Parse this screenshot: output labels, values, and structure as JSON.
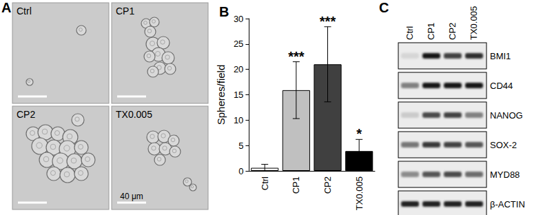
{
  "panel_a": {
    "letter": "A",
    "images": [
      {
        "label": "Ctrl"
      },
      {
        "label": "CP1"
      },
      {
        "label": "CP2"
      },
      {
        "label": "TX0.005",
        "scale_bar": "40 μm"
      }
    ]
  },
  "chart_data": {
    "type": "bar",
    "title": "B",
    "y_label": "Spheres/field",
    "categories": [
      "Ctrl",
      "CP1",
      "CP2",
      "TX0.005"
    ],
    "values": [
      0.6,
      15.9,
      21.0,
      3.9
    ],
    "errors": [
      0.7,
      5.6,
      7.4,
      2.3
    ],
    "annotations": [
      null,
      "***",
      "***",
      "*"
    ],
    "colors": [
      "#ffffff",
      "#c0c0c0",
      "#404040",
      "#000000"
    ],
    "ylim": [
      0,
      30
    ],
    "yticks": [
      0,
      5,
      10,
      15,
      20,
      25,
      30
    ],
    "grid": false
  },
  "panel_c": {
    "letter": "C",
    "lanes": [
      "Ctrl",
      "CP1",
      "CP2",
      "TX0.005"
    ],
    "blots": [
      {
        "label": "BMI1",
        "intensities": [
          0.1,
          1.0,
          0.8,
          0.9
        ]
      },
      {
        "label": "CD44",
        "intensities": [
          0.5,
          1.0,
          1.0,
          1.0
        ]
      },
      {
        "label": "NANOG",
        "intensities": [
          0.15,
          0.75,
          0.8,
          0.5
        ]
      },
      {
        "label": "SOX-2",
        "intensities": [
          0.55,
          0.85,
          0.8,
          0.7
        ]
      },
      {
        "label": "MYD88",
        "intensities": [
          0.45,
          0.7,
          0.75,
          0.6
        ]
      },
      {
        "label": "β-ACTIN",
        "intensities": [
          0.95,
          0.95,
          0.95,
          0.95
        ]
      }
    ]
  }
}
